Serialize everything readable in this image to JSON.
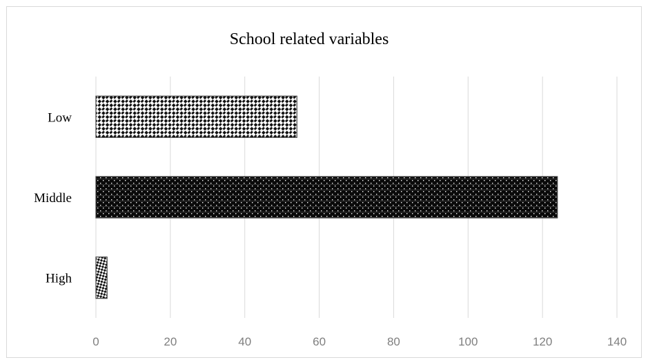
{
  "chart_data": {
    "type": "bar",
    "orientation": "horizontal",
    "title": "School related variables",
    "categories": [
      "Low",
      "Middle",
      "High"
    ],
    "values": [
      54,
      124,
      3
    ],
    "xlim": [
      0,
      140
    ],
    "xticks": [
      "0",
      "20",
      "40",
      "60",
      "80",
      "100",
      "120",
      "140"
    ],
    "xlabel": "",
    "ylabel": "",
    "grid": "vertical",
    "legend": "none",
    "patterns": [
      "diagonal-checker",
      "dark-dotted",
      "checker"
    ],
    "colors": {
      "bar_dark": "#000000",
      "bar_light": "#ffffff",
      "grid": "#d9d9d9",
      "tick_text": "#7f7f7f"
    }
  }
}
